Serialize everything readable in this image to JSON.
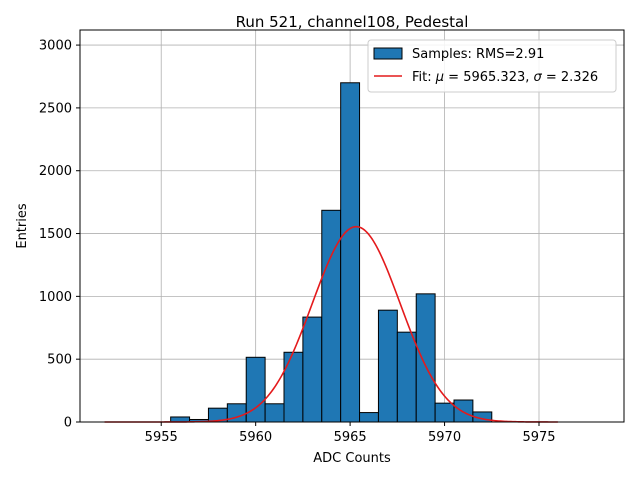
{
  "chart_data": {
    "type": "bar",
    "title": "Run 521, channel108, Pedestal",
    "xlabel": "ADC Counts",
    "ylabel": "Entries",
    "xlim": [
      5950.7,
      5979.5
    ],
    "ylim": [
      0,
      3120
    ],
    "xticks": [
      5955,
      5960,
      5965,
      5970,
      5975
    ],
    "yticks": [
      0,
      500,
      1000,
      1500,
      2000,
      2500,
      3000
    ],
    "grid": true,
    "legend_position": "top-right",
    "histogram": {
      "name": "Samples: RMS=2.91",
      "color": "#1f77b4",
      "edge_color": "#000000",
      "bins": [
        {
          "left": 5954.5,
          "right": 5955.5,
          "count": 0
        },
        {
          "left": 5955.5,
          "right": 5956.5,
          "count": 40
        },
        {
          "left": 5956.5,
          "right": 5957.5,
          "count": 20
        },
        {
          "left": 5957.5,
          "right": 5958.5,
          "count": 110
        },
        {
          "left": 5958.5,
          "right": 5959.5,
          "count": 145
        },
        {
          "left": 5959.5,
          "right": 5960.5,
          "count": 515
        },
        {
          "left": 5960.5,
          "right": 5961.5,
          "count": 145
        },
        {
          "left": 5961.5,
          "right": 5962.5,
          "count": 555
        },
        {
          "left": 5962.5,
          "right": 5963.5,
          "count": 835
        },
        {
          "left": 5963.5,
          "right": 5964.5,
          "count": 1685
        },
        {
          "left": 5964.5,
          "right": 5965.5,
          "count": 2700
        },
        {
          "left": 5965.5,
          "right": 5966.5,
          "count": 75
        },
        {
          "left": 5966.5,
          "right": 5967.5,
          "count": 890
        },
        {
          "left": 5967.5,
          "right": 5968.5,
          "count": 715
        },
        {
          "left": 5968.5,
          "right": 5969.5,
          "count": 1020
        },
        {
          "left": 5969.5,
          "right": 5970.5,
          "count": 150
        },
        {
          "left": 5970.5,
          "right": 5971.5,
          "count": 175
        },
        {
          "left": 5971.5,
          "right": 5972.5,
          "count": 80
        }
      ]
    },
    "fit": {
      "name": "Fit: μ = 5965.323, σ = 2.326",
      "legend_prefix": "Fit: ",
      "mu_symbol": "μ",
      "mu_text": " = 5965.323, ",
      "sigma_symbol": "σ",
      "sigma_text": " = 2.326",
      "color": "#e41a1c",
      "mu": 5965.323,
      "sigma": 2.326,
      "amplitude": 1555,
      "x_range": [
        5952,
        5976
      ]
    }
  }
}
